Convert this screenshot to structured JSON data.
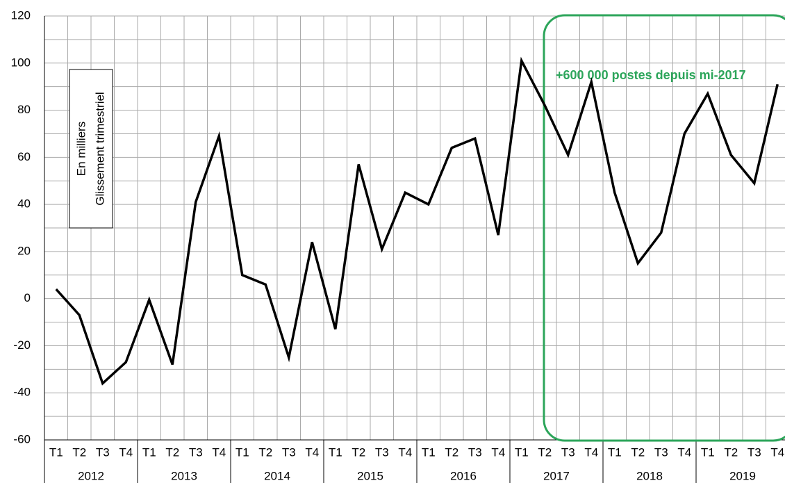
{
  "chart_data": {
    "type": "line",
    "categories": [
      "T1",
      "T2",
      "T3",
      "T4",
      "T1",
      "T2",
      "T3",
      "T4",
      "T1",
      "T2",
      "T3",
      "T4",
      "T1",
      "T2",
      "T3",
      "T4",
      "T1",
      "T2",
      "T3",
      "T4",
      "T1",
      "T2",
      "T3",
      "T4",
      "T1",
      "T2",
      "T3",
      "T4",
      "T1",
      "T2",
      "T3",
      "T4"
    ],
    "groups": [
      "2012",
      "2013",
      "2014",
      "2015",
      "2016",
      "2017",
      "2018",
      "2019"
    ],
    "series": [
      {
        "color": "#000000",
        "values": [
          4,
          -7,
          -36,
          -27,
          -0.5,
          -28,
          41,
          69,
          10,
          6,
          -25,
          24,
          -13,
          57,
          21,
          45,
          40,
          64,
          68,
          27,
          101,
          82,
          61,
          92,
          45,
          15,
          28,
          70,
          87,
          61,
          49,
          91
        ]
      }
    ],
    "ylim": [
      -60,
      120
    ],
    "yticks": [
      -60,
      -40,
      -20,
      0,
      20,
      40,
      60,
      80,
      100,
      120
    ],
    "grid": true,
    "annotations": [
      "En milliers",
      "Glissement trimestriel",
      "+600 000 postes depuis mi-2017"
    ]
  }
}
